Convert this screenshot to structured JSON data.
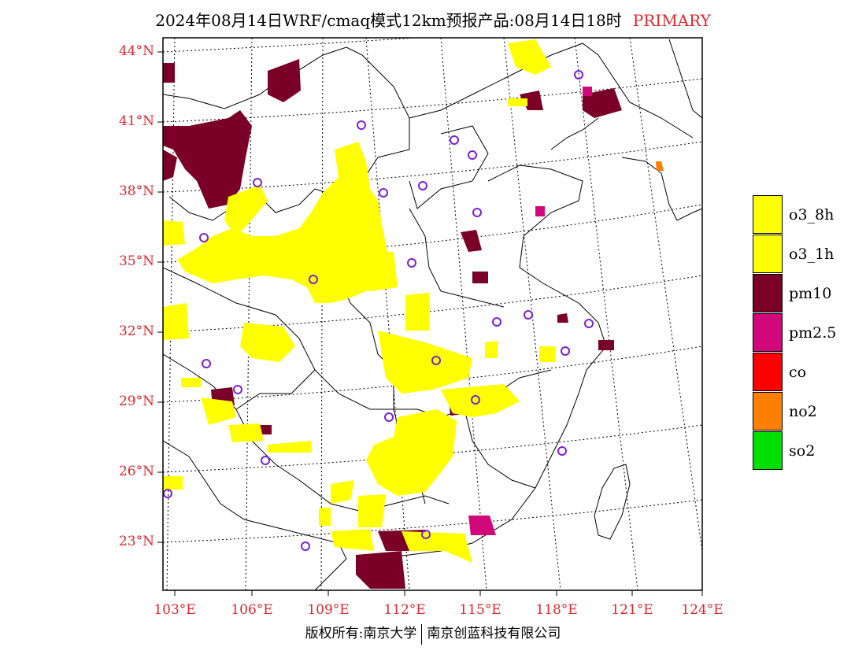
{
  "title": {
    "main": "2024年08月14日WRF/cmaq模式12km预报产品:08月14日18时",
    "tag": "PRIMARY"
  },
  "map": {
    "lat_labels": [
      "44°N",
      "41°N",
      "38°N",
      "35°N",
      "32°N",
      "29°N",
      "26°N",
      "23°N"
    ],
    "lon_labels": [
      "103°E",
      "106°E",
      "109°E",
      "112°E",
      "115°E",
      "118°E",
      "121°E",
      "124°E"
    ]
  },
  "legend": [
    {
      "label": "o3_8h",
      "color": "#ffff00"
    },
    {
      "label": "o3_1h",
      "color": "#ffff00"
    },
    {
      "label": "pm10",
      "color": "#7a0028"
    },
    {
      "label": "pm2.5",
      "color": "#d0087a"
    },
    {
      "label": "co",
      "color": "#ff0000"
    },
    {
      "label": "no2",
      "color": "#ff7f00"
    },
    {
      "label": "so2",
      "color": "#00e000"
    }
  ],
  "colors": {
    "label_red": "#e0262f",
    "station_marker": "#7f1fd0"
  },
  "footer": {
    "left": "版权所有:南京大学",
    "right": "南京创蓝科技有限公司"
  }
}
